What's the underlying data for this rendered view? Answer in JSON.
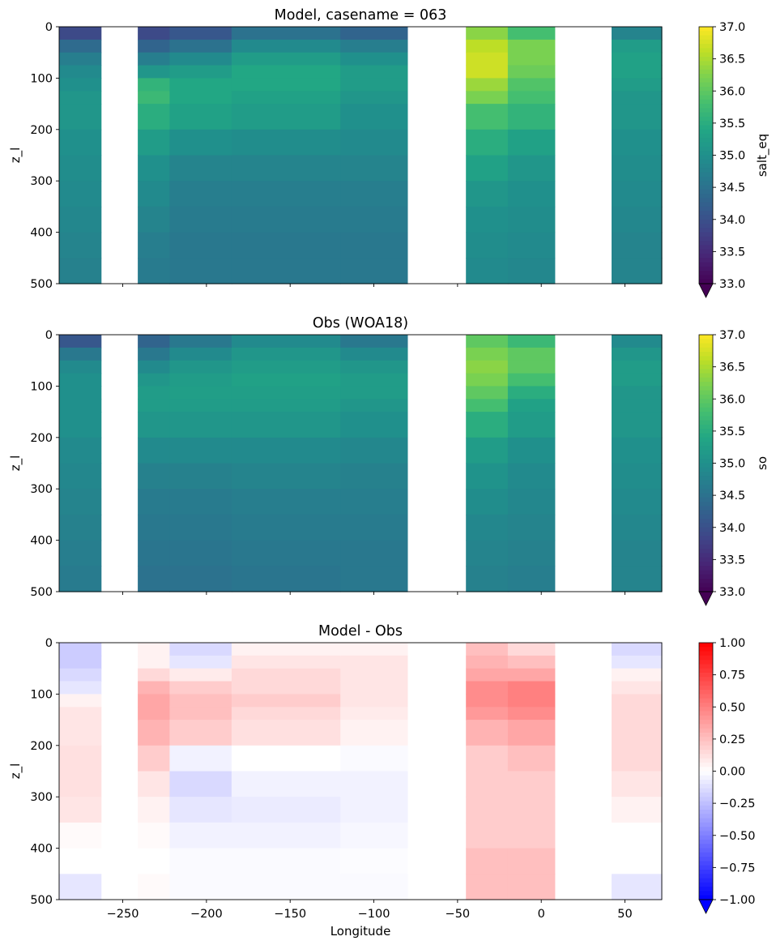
{
  "chart_data": [
    {
      "type": "heatmap",
      "title": "Model, casename = 063",
      "xlabel": "",
      "ylabel": "z_l",
      "xlim": [
        -288,
        72
      ],
      "ylim": [
        500,
        0
      ],
      "yticks": [
        "0",
        "100",
        "200",
        "300",
        "400",
        "500"
      ],
      "xticks": [
        "",
        "",
        "",
        "",
        "",
        "",
        "",
        ""
      ],
      "colorbar": {
        "label": "salt_eq",
        "colormap": "viridis",
        "range": [
          33.0,
          37.0
        ],
        "extend": "min",
        "ticks": [
          "33.0",
          "33.5",
          "34.0",
          "34.5",
          "35.0",
          "35.5",
          "36.0",
          "36.5",
          "37.0"
        ]
      },
      "masked_longitude_ranges": [
        [
          -263,
          -241
        ],
        [
          -80,
          -45
        ],
        [
          8,
          42
        ]
      ],
      "depth_levels": [
        0,
        25,
        50,
        75,
        100,
        125,
        150,
        200,
        250,
        300,
        350,
        400,
        450,
        500
      ],
      "longitude_bands": [
        {
          "lon": [
            -288,
            -263
          ],
          "profile": [
            33.9,
            34.4,
            34.7,
            34.9,
            35.0,
            35.1,
            35.1,
            35.0,
            34.95,
            34.9,
            34.85,
            34.8,
            34.75
          ]
        },
        {
          "lon": [
            -241,
            -222
          ],
          "profile": [
            33.9,
            34.3,
            34.7,
            35.1,
            35.6,
            35.7,
            35.5,
            35.2,
            35.0,
            34.9,
            34.8,
            34.7,
            34.65
          ]
        },
        {
          "lon": [
            -222,
            -185
          ],
          "profile": [
            34.1,
            34.5,
            34.9,
            35.2,
            35.4,
            35.4,
            35.3,
            35.0,
            34.8,
            34.7,
            34.65,
            34.6,
            34.6
          ]
        },
        {
          "lon": [
            -185,
            -120
          ],
          "profile": [
            34.5,
            34.9,
            35.2,
            35.4,
            35.4,
            35.3,
            35.2,
            34.95,
            34.8,
            34.7,
            34.65,
            34.6,
            34.6
          ]
        },
        {
          "lon": [
            -120,
            -80
          ],
          "profile": [
            34.3,
            34.7,
            35.0,
            35.2,
            35.2,
            35.1,
            35.0,
            34.9,
            34.8,
            34.7,
            34.65,
            34.6,
            34.6
          ]
        },
        {
          "lon": [
            -45,
            -20
          ],
          "profile": [
            36.3,
            36.6,
            36.7,
            36.7,
            36.4,
            36.2,
            35.8,
            35.5,
            35.3,
            35.1,
            35.0,
            34.95,
            34.9
          ]
        },
        {
          "lon": [
            -20,
            8
          ],
          "profile": [
            35.8,
            36.2,
            36.2,
            36.1,
            35.9,
            35.8,
            35.6,
            35.3,
            35.1,
            35.0,
            34.95,
            34.9,
            34.85
          ]
        },
        {
          "lon": [
            42,
            72
          ],
          "profile": [
            34.8,
            35.2,
            35.3,
            35.3,
            35.2,
            35.1,
            35.1,
            35.0,
            34.95,
            34.9,
            34.85,
            34.8,
            34.8
          ]
        }
      ]
    },
    {
      "type": "heatmap",
      "title": "Obs (WOA18)",
      "xlabel": "",
      "ylabel": "z_l",
      "xlim": [
        -288,
        72
      ],
      "ylim": [
        500,
        0
      ],
      "yticks": [
        "0",
        "100",
        "200",
        "300",
        "400",
        "500"
      ],
      "xticks": [
        "",
        "",
        "",
        "",
        "",
        "",
        "",
        ""
      ],
      "colorbar": {
        "label": "so",
        "colormap": "viridis",
        "range": [
          33.0,
          37.0
        ],
        "extend": "min",
        "ticks": [
          "33.0",
          "33.5",
          "34.0",
          "34.5",
          "35.0",
          "35.5",
          "36.0",
          "36.5",
          "37.0"
        ]
      },
      "masked_longitude_ranges": [
        [
          -263,
          -241
        ],
        [
          -80,
          -45
        ],
        [
          8,
          42
        ]
      ],
      "depth_levels": [
        0,
        25,
        50,
        75,
        100,
        125,
        150,
        200,
        250,
        300,
        350,
        400,
        450,
        500
      ],
      "longitude_bands": [
        {
          "lon": [
            -288,
            -263
          ],
          "profile": [
            34.1,
            34.6,
            34.9,
            35.0,
            35.0,
            35.0,
            35.0,
            34.9,
            34.85,
            34.8,
            34.75,
            34.7,
            34.65
          ]
        },
        {
          "lon": [
            -241,
            -222
          ],
          "profile": [
            34.3,
            34.6,
            34.9,
            35.1,
            35.2,
            35.2,
            35.1,
            34.9,
            34.75,
            34.65,
            34.6,
            34.55,
            34.5
          ]
        },
        {
          "lon": [
            -222,
            -185
          ],
          "profile": [
            34.6,
            34.9,
            35.1,
            35.2,
            35.25,
            35.2,
            35.1,
            34.9,
            34.75,
            34.65,
            34.6,
            34.55,
            34.5
          ]
        },
        {
          "lon": [
            -185,
            -120
          ],
          "profile": [
            34.9,
            35.1,
            35.2,
            35.3,
            35.25,
            35.2,
            35.1,
            34.9,
            34.8,
            34.7,
            34.65,
            34.6,
            34.55
          ]
        },
        {
          "lon": [
            -120,
            -80
          ],
          "profile": [
            34.6,
            34.9,
            35.1,
            35.2,
            35.2,
            35.1,
            35.0,
            34.85,
            34.75,
            34.7,
            34.65,
            34.6,
            34.6
          ]
        },
        {
          "lon": [
            -45,
            -20
          ],
          "profile": [
            36.0,
            36.2,
            36.3,
            36.2,
            36.0,
            35.8,
            35.5,
            35.2,
            35.05,
            34.95,
            34.85,
            34.8,
            34.75
          ]
        },
        {
          "lon": [
            -20,
            8
          ],
          "profile": [
            35.7,
            36.0,
            36.0,
            35.8,
            35.5,
            35.3,
            35.2,
            35.0,
            34.9,
            34.85,
            34.8,
            34.75,
            34.7
          ]
        },
        {
          "lon": [
            42,
            72
          ],
          "profile": [
            34.9,
            35.1,
            35.2,
            35.2,
            35.1,
            35.1,
            35.1,
            35.0,
            34.95,
            34.9,
            34.85,
            34.8,
            34.8
          ]
        }
      ]
    },
    {
      "type": "heatmap",
      "title": "Model - Obs",
      "xlabel": "Longitude",
      "ylabel": "z_l",
      "xlim": [
        -288,
        72
      ],
      "ylim": [
        500,
        0
      ],
      "yticks": [
        "0",
        "100",
        "200",
        "300",
        "400",
        "500"
      ],
      "xticks": [
        "−250",
        "−200",
        "−150",
        "−100",
        "−50",
        "0",
        "50"
      ],
      "xtick_values": [
        -250,
        -200,
        -150,
        -100,
        -50,
        0,
        50
      ],
      "colorbar": {
        "label": "",
        "colormap": "bwr",
        "range": [
          -1.0,
          1.0
        ],
        "extend": "min",
        "ticks": [
          "−1.00",
          "−0.75",
          "−0.50",
          "−0.25",
          "0.00",
          "0.25",
          "0.50",
          "0.75",
          "1.00"
        ]
      },
      "masked_longitude_ranges": [
        [
          -263,
          -241
        ],
        [
          -80,
          -45
        ],
        [
          8,
          42
        ]
      ],
      "depth_levels": [
        0,
        25,
        50,
        75,
        100,
        125,
        150,
        200,
        250,
        300,
        350,
        400,
        450,
        500
      ],
      "longitude_bands": [
        {
          "lon": [
            -288,
            -263
          ],
          "profile": [
            -0.2,
            -0.2,
            -0.15,
            -0.1,
            0.05,
            0.1,
            0.1,
            0.12,
            0.12,
            0.1,
            0.02,
            0.0,
            -0.1
          ]
        },
        {
          "lon": [
            -241,
            -222
          ],
          "profile": [
            0.05,
            0.05,
            0.15,
            0.3,
            0.35,
            0.35,
            0.3,
            0.2,
            0.1,
            0.05,
            0.02,
            0.0,
            0.02
          ]
        },
        {
          "lon": [
            -222,
            -185
          ],
          "profile": [
            -0.15,
            -0.1,
            0.08,
            0.2,
            0.25,
            0.25,
            0.2,
            -0.05,
            -0.15,
            -0.1,
            -0.05,
            -0.02,
            -0.02
          ]
        },
        {
          "lon": [
            -185,
            -120
          ],
          "profile": [
            0.05,
            0.1,
            0.15,
            0.15,
            0.2,
            0.15,
            0.12,
            0.0,
            -0.05,
            -0.08,
            -0.05,
            -0.02,
            -0.02
          ]
        },
        {
          "lon": [
            -120,
            -80
          ],
          "profile": [
            0.05,
            0.1,
            0.1,
            0.1,
            0.1,
            0.08,
            0.05,
            -0.02,
            -0.05,
            -0.05,
            -0.03,
            -0.01,
            -0.02
          ]
        },
        {
          "lon": [
            -45,
            -20
          ],
          "profile": [
            0.25,
            0.3,
            0.35,
            0.45,
            0.45,
            0.4,
            0.3,
            0.2,
            0.2,
            0.2,
            0.2,
            0.25,
            0.25
          ]
        },
        {
          "lon": [
            -20,
            8
          ],
          "profile": [
            0.15,
            0.25,
            0.35,
            0.5,
            0.5,
            0.45,
            0.35,
            0.25,
            0.2,
            0.2,
            0.2,
            0.25,
            0.25
          ]
        },
        {
          "lon": [
            42,
            72
          ],
          "profile": [
            -0.15,
            -0.1,
            0.05,
            0.1,
            0.15,
            0.15,
            0.15,
            0.15,
            0.1,
            0.05,
            0.0,
            0.0,
            -0.1
          ]
        }
      ]
    }
  ]
}
